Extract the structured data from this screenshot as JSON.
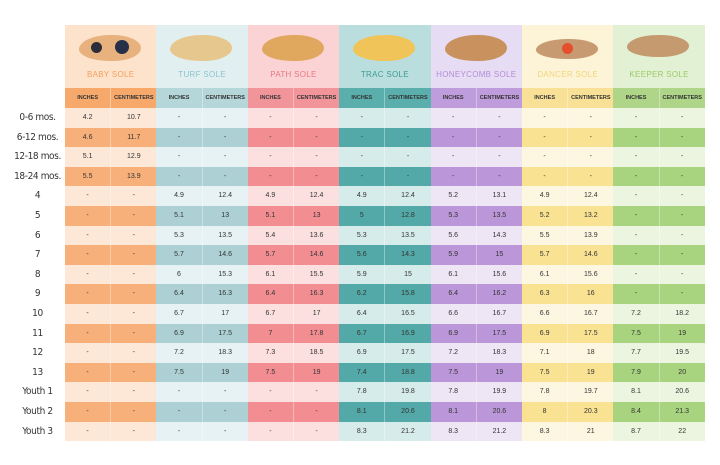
{
  "columns": {
    "inches": "INCHES",
    "cm": "CENTIMETERS"
  },
  "row_labels": [
    "0-6 mos.",
    "6-12 mos.",
    "12-18 mos.",
    "18-24 mos.",
    "4",
    "5",
    "6",
    "7",
    "8",
    "9",
    "10",
    "11",
    "12",
    "13",
    "Youth 1",
    "Youth 2",
    "Youth 3"
  ],
  "soles": [
    {
      "name": "BABY SOLE",
      "title_color": "#f4a05d",
      "head_bg": "#fde2cc",
      "sub_bg": "#f7a96b",
      "light": "#fde7d7",
      "dark": "#f8b07a",
      "icon": "baby-sole-icon",
      "values": [
        [
          "4.2",
          "10.7"
        ],
        [
          "4.6",
          "11.7"
        ],
        [
          "5.1",
          "12.9"
        ],
        [
          "5.5",
          "13.9"
        ],
        [
          "-",
          "-"
        ],
        [
          "-",
          "-"
        ],
        [
          "-",
          "-"
        ],
        [
          "-",
          "-"
        ],
        [
          "-",
          "-"
        ],
        [
          "-",
          "-"
        ],
        [
          "-",
          "-"
        ],
        [
          "-",
          "-"
        ],
        [
          "-",
          "-"
        ],
        [
          "-",
          "-"
        ],
        [
          "-",
          "-"
        ],
        [
          "-",
          "-"
        ],
        [
          "-",
          "-"
        ]
      ]
    },
    {
      "name": "TURF SOLE",
      "title_color": "#8cc5cc",
      "head_bg": "#e1eff1",
      "sub_bg": "#b5d7da",
      "light": "#e6f2f3",
      "dark": "#acd0d4",
      "icon": "turf-sole-icon",
      "values": [
        [
          "-",
          "-"
        ],
        [
          "-",
          "-"
        ],
        [
          "-",
          "-"
        ],
        [
          "-",
          "-"
        ],
        [
          "4.9",
          "12.4"
        ],
        [
          "5.1",
          "13"
        ],
        [
          "5.3",
          "13.5"
        ],
        [
          "5.7",
          "14.6"
        ],
        [
          "6",
          "15.3"
        ],
        [
          "6.4",
          "16.3"
        ],
        [
          "6.7",
          "17"
        ],
        [
          "6.9",
          "17.5"
        ],
        [
          "7.2",
          "18.3"
        ],
        [
          "7.5",
          "19"
        ],
        [
          "-",
          "-"
        ],
        [
          "-",
          "-"
        ],
        [
          "-",
          "-"
        ]
      ]
    },
    {
      "name": "PATH SOLE",
      "title_color": "#e8787f",
      "head_bg": "#fbd3d5",
      "sub_bg": "#f2959a",
      "light": "#fce0e0",
      "dark": "#f28e92",
      "icon": "path-sole-icon",
      "values": [
        [
          "-",
          "-"
        ],
        [
          "-",
          "-"
        ],
        [
          "-",
          "-"
        ],
        [
          "-",
          "-"
        ],
        [
          "4.9",
          "12.4"
        ],
        [
          "5.1",
          "13"
        ],
        [
          "5.4",
          "13.6"
        ],
        [
          "5.7",
          "14.6"
        ],
        [
          "6.1",
          "15.5"
        ],
        [
          "6.4",
          "16.3"
        ],
        [
          "6.7",
          "17"
        ],
        [
          "7",
          "17.8"
        ],
        [
          "7.3",
          "18.5"
        ],
        [
          "7.5",
          "19"
        ],
        [
          "-",
          "-"
        ],
        [
          "-",
          "-"
        ],
        [
          "-",
          "-"
        ]
      ]
    },
    {
      "name": "TRAC SOLE",
      "title_color": "#3f9a98",
      "head_bg": "#b9dedd",
      "sub_bg": "#5aaeab",
      "light": "#d6ecea",
      "dark": "#52a9a7",
      "icon": "trac-sole-icon",
      "values": [
        [
          "-",
          "-"
        ],
        [
          "-",
          "-"
        ],
        [
          "-",
          "-"
        ],
        [
          "-",
          "-"
        ],
        [
          "4.9",
          "12.4"
        ],
        [
          "5",
          "12.8"
        ],
        [
          "5.3",
          "13.5"
        ],
        [
          "5.6",
          "14.3"
        ],
        [
          "5.9",
          "15"
        ],
        [
          "6.2",
          "15.8"
        ],
        [
          "6.4",
          "16.5"
        ],
        [
          "6.7",
          "16.9"
        ],
        [
          "6.9",
          "17.5"
        ],
        [
          "7.4",
          "18.8"
        ],
        [
          "7.8",
          "19.8"
        ],
        [
          "8.1",
          "20.6"
        ],
        [
          "8.3",
          "21.2"
        ]
      ]
    },
    {
      "name": "HONEYCOMB SOLE",
      "title_color": "#b48cd8",
      "head_bg": "#e6dcf3",
      "sub_bg": "#bf9cdc",
      "light": "#eee5f5",
      "dark": "#bb96d8",
      "icon": "honeycomb-sole-icon",
      "values": [
        [
          "-",
          "-"
        ],
        [
          "-",
          "-"
        ],
        [
          "-",
          "-"
        ],
        [
          "-",
          "-"
        ],
        [
          "5.2",
          "13.1"
        ],
        [
          "5.3",
          "13.5"
        ],
        [
          "5.6",
          "14.3"
        ],
        [
          "5.9",
          "15"
        ],
        [
          "6.1",
          "15.6"
        ],
        [
          "6.4",
          "16.2"
        ],
        [
          "6.6",
          "16.7"
        ],
        [
          "6.9",
          "17.5"
        ],
        [
          "7.2",
          "18.3"
        ],
        [
          "7.5",
          "19"
        ],
        [
          "7.8",
          "19.9"
        ],
        [
          "8.1",
          "20.6"
        ],
        [
          "8.3",
          "21.2"
        ]
      ]
    },
    {
      "name": "DANCER SOLE",
      "title_color": "#f1d67a",
      "head_bg": "#fdf3d6",
      "sub_bg": "#f8e197",
      "light": "#fdf7e2",
      "dark": "#f9e292",
      "icon": "dancer-sole-icon",
      "values": [
        [
          "-",
          "-"
        ],
        [
          "-",
          "-"
        ],
        [
          "-",
          "-"
        ],
        [
          "-",
          "-"
        ],
        [
          "4.9",
          "12.4"
        ],
        [
          "5.2",
          "13.2"
        ],
        [
          "5.5",
          "13.9"
        ],
        [
          "5.7",
          "14.6"
        ],
        [
          "6.1",
          "15.6"
        ],
        [
          "6.3",
          "16"
        ],
        [
          "6.6",
          "16.7"
        ],
        [
          "6.9",
          "17.5"
        ],
        [
          "7.1",
          "18"
        ],
        [
          "7.5",
          "19"
        ],
        [
          "7.8",
          "19.7"
        ],
        [
          "8",
          "20.3"
        ],
        [
          "8.3",
          "21"
        ]
      ]
    },
    {
      "name": "KEEPER SOLE",
      "title_color": "#9acb66",
      "head_bg": "#e2f0d3",
      "sub_bg": "#aed588",
      "light": "#ecf5e0",
      "dark": "#a9d47f",
      "icon": "keeper-sole-icon",
      "values": [
        [
          "-",
          "-"
        ],
        [
          "-",
          "-"
        ],
        [
          "-",
          "-"
        ],
        [
          "-",
          "-"
        ],
        [
          "-",
          "-"
        ],
        [
          "-",
          "-"
        ],
        [
          "-",
          "-"
        ],
        [
          "-",
          "-"
        ],
        [
          "-",
          "-"
        ],
        [
          "-",
          "-"
        ],
        [
          "7.2",
          "18.2"
        ],
        [
          "7.5",
          "19"
        ],
        [
          "7.7",
          "19.5"
        ],
        [
          "7.9",
          "20"
        ],
        [
          "8.1",
          "20.6"
        ],
        [
          "8.4",
          "21.3"
        ],
        [
          "8.7",
          "22"
        ]
      ]
    }
  ]
}
